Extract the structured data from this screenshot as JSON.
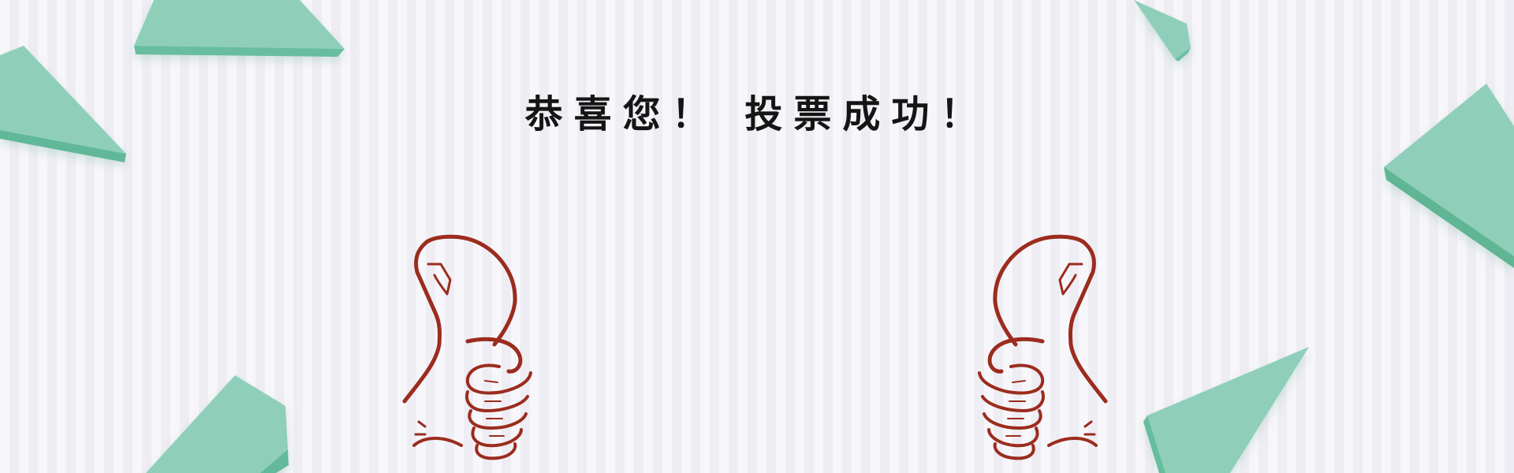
{
  "headline": "恭喜您！ 投票成功！",
  "colors": {
    "background": "#f5f4f9",
    "stripe": "#eeedf3",
    "shard_light": "#8fcfb9",
    "shard_dark": "#5fb89a",
    "thumb_stroke": "#9b2c1e",
    "text": "#151515"
  },
  "icons": {
    "left": "thumbs-up-icon",
    "right": "thumbs-up-icon"
  }
}
